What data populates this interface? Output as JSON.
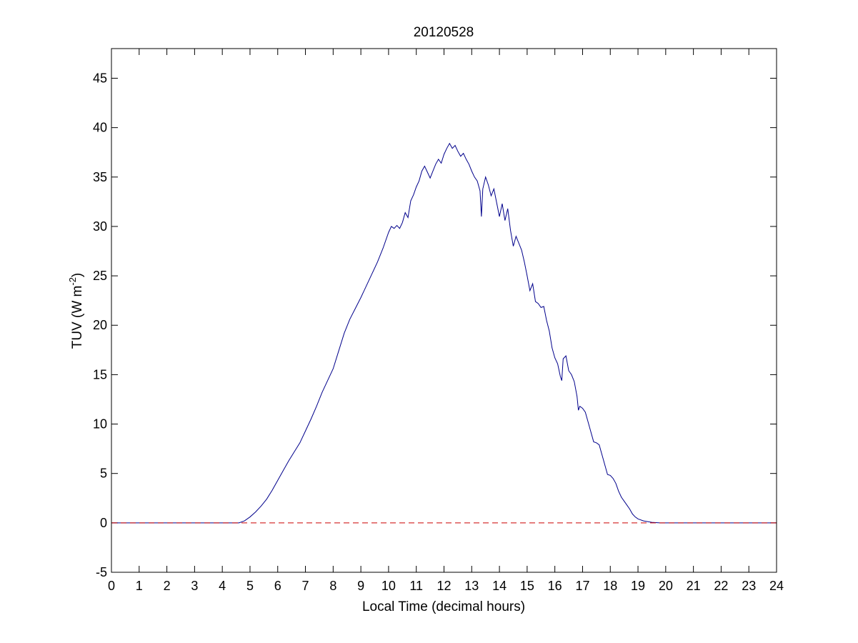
{
  "chart_data": {
    "type": "line",
    "title": "20120528",
    "xlabel": "Local Time (decimal hours)",
    "ylabel_main": "TUV (W m",
    "ylabel_sup": "-2",
    "ylabel_close": ")",
    "xlim": [
      0,
      24
    ],
    "ylim": [
      -5,
      48
    ],
    "xticks": [
      0,
      1,
      2,
      3,
      4,
      5,
      6,
      7,
      8,
      9,
      10,
      11,
      12,
      13,
      14,
      15,
      16,
      17,
      18,
      19,
      20,
      21,
      22,
      23,
      24
    ],
    "yticks": [
      -5,
      0,
      5,
      10,
      15,
      20,
      25,
      30,
      35,
      40,
      45
    ],
    "grid": false,
    "colors": {
      "series": "#00008b",
      "zero_line": "#cc0000",
      "axes": "#000000"
    },
    "series": [
      {
        "line_style": "solid",
        "color": "#00008b",
        "points": [
          [
            0,
            0
          ],
          [
            4.6,
            0
          ],
          [
            4.8,
            0.2
          ],
          [
            5.0,
            0.6
          ],
          [
            5.2,
            1.1
          ],
          [
            5.4,
            1.7
          ],
          [
            5.6,
            2.4
          ],
          [
            5.8,
            3.3
          ],
          [
            6.0,
            4.3
          ],
          [
            6.2,
            5.3
          ],
          [
            6.4,
            6.3
          ],
          [
            6.6,
            7.2
          ],
          [
            6.8,
            8.1
          ],
          [
            7.0,
            9.3
          ],
          [
            7.2,
            10.5
          ],
          [
            7.4,
            11.8
          ],
          [
            7.6,
            13.2
          ],
          [
            7.8,
            14.4
          ],
          [
            8.0,
            15.6
          ],
          [
            8.2,
            17.4
          ],
          [
            8.4,
            19.2
          ],
          [
            8.6,
            20.6
          ],
          [
            8.8,
            21.7
          ],
          [
            9.0,
            22.8
          ],
          [
            9.2,
            24.0
          ],
          [
            9.4,
            25.2
          ],
          [
            9.6,
            26.4
          ],
          [
            9.8,
            27.8
          ],
          [
            10.0,
            29.4
          ],
          [
            10.1,
            30.0
          ],
          [
            10.2,
            29.8
          ],
          [
            10.3,
            30.1
          ],
          [
            10.4,
            29.8
          ],
          [
            10.5,
            30.4
          ],
          [
            10.6,
            31.4
          ],
          [
            10.7,
            30.9
          ],
          [
            10.8,
            32.6
          ],
          [
            10.9,
            33.2
          ],
          [
            11.0,
            34.0
          ],
          [
            11.1,
            34.6
          ],
          [
            11.2,
            35.6
          ],
          [
            11.3,
            36.1
          ],
          [
            11.4,
            35.5
          ],
          [
            11.5,
            34.9
          ],
          [
            11.6,
            35.6
          ],
          [
            11.7,
            36.3
          ],
          [
            11.8,
            36.8
          ],
          [
            11.9,
            36.4
          ],
          [
            12.0,
            37.3
          ],
          [
            12.1,
            37.9
          ],
          [
            12.2,
            38.4
          ],
          [
            12.3,
            37.9
          ],
          [
            12.4,
            38.2
          ],
          [
            12.5,
            37.6
          ],
          [
            12.6,
            37.1
          ],
          [
            12.7,
            37.4
          ],
          [
            12.8,
            36.8
          ],
          [
            12.9,
            36.3
          ],
          [
            13.0,
            35.6
          ],
          [
            13.1,
            35.0
          ],
          [
            13.2,
            34.6
          ],
          [
            13.3,
            33.6
          ],
          [
            13.35,
            31.0
          ],
          [
            13.4,
            33.8
          ],
          [
            13.5,
            35.0
          ],
          [
            13.6,
            34.2
          ],
          [
            13.7,
            33.1
          ],
          [
            13.8,
            33.8
          ],
          [
            13.9,
            32.4
          ],
          [
            14.0,
            31.0
          ],
          [
            14.1,
            32.3
          ],
          [
            14.2,
            30.6
          ],
          [
            14.3,
            31.8
          ],
          [
            14.4,
            29.6
          ],
          [
            14.5,
            28.0
          ],
          [
            14.6,
            29.0
          ],
          [
            14.7,
            28.3
          ],
          [
            14.8,
            27.6
          ],
          [
            14.9,
            26.4
          ],
          [
            15.0,
            25.0
          ],
          [
            15.1,
            23.5
          ],
          [
            15.2,
            24.2
          ],
          [
            15.3,
            22.4
          ],
          [
            15.4,
            22.2
          ],
          [
            15.5,
            21.8
          ],
          [
            15.6,
            21.9
          ],
          [
            15.7,
            20.5
          ],
          [
            15.8,
            19.4
          ],
          [
            15.9,
            17.7
          ],
          [
            16.0,
            16.7
          ],
          [
            16.1,
            16.1
          ],
          [
            16.2,
            14.8
          ],
          [
            16.25,
            14.4
          ],
          [
            16.3,
            16.6
          ],
          [
            16.4,
            16.9
          ],
          [
            16.5,
            15.4
          ],
          [
            16.6,
            15.0
          ],
          [
            16.7,
            14.3
          ],
          [
            16.8,
            12.8
          ],
          [
            16.85,
            11.4
          ],
          [
            16.9,
            11.8
          ],
          [
            17.0,
            11.6
          ],
          [
            17.1,
            11.2
          ],
          [
            17.2,
            10.2
          ],
          [
            17.3,
            9.2
          ],
          [
            17.4,
            8.2
          ],
          [
            17.5,
            8.1
          ],
          [
            17.6,
            7.9
          ],
          [
            17.7,
            6.9
          ],
          [
            17.8,
            5.9
          ],
          [
            17.9,
            4.9
          ],
          [
            18.0,
            4.8
          ],
          [
            18.1,
            4.5
          ],
          [
            18.2,
            4.0
          ],
          [
            18.3,
            3.2
          ],
          [
            18.4,
            2.6
          ],
          [
            18.5,
            2.2
          ],
          [
            18.6,
            1.8
          ],
          [
            18.7,
            1.4
          ],
          [
            18.8,
            0.9
          ],
          [
            18.9,
            0.6
          ],
          [
            19.0,
            0.4
          ],
          [
            19.2,
            0.2
          ],
          [
            19.5,
            0.05
          ],
          [
            19.8,
            0
          ],
          [
            24,
            0
          ]
        ]
      },
      {
        "line_style": "dashed",
        "color": "#cc0000",
        "points": [
          [
            0,
            0
          ],
          [
            24,
            0
          ]
        ]
      }
    ]
  }
}
